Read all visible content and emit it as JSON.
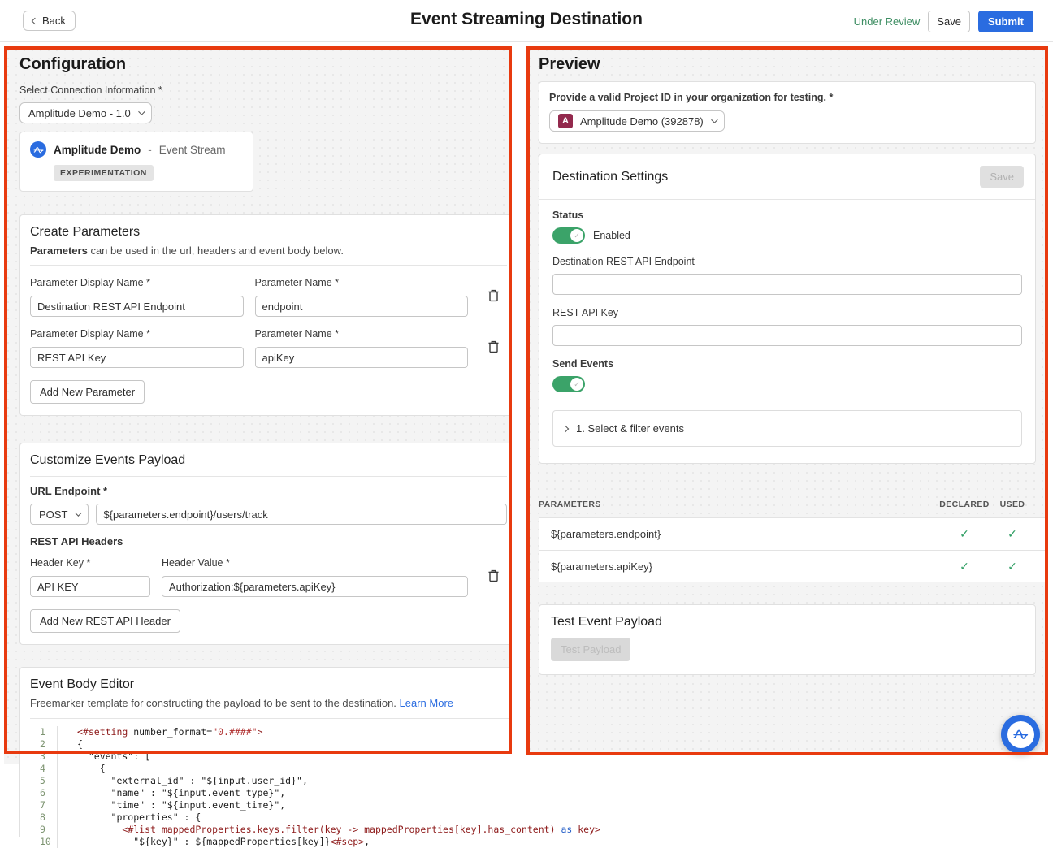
{
  "header": {
    "back_label": "Back",
    "title": "Event Streaming Destination",
    "status_text": "Under Review",
    "save_label": "Save",
    "submit_label": "Submit"
  },
  "config": {
    "title": "Configuration",
    "connection": {
      "label": "Select Connection Information *",
      "selected": "Amplitude Demo - 1.0",
      "card_name": "Amplitude Demo",
      "card_sep": "-",
      "card_type": "Event Stream",
      "badge": "EXPERIMENTATION"
    },
    "create_parameters": {
      "title": "Create Parameters",
      "subtitle_bold": "Parameters",
      "subtitle_rest": " can be used in the url, headers and event body below.",
      "display_name_label": "Parameter Display Name *",
      "name_label": "Parameter Name *",
      "rows": [
        {
          "display_name": "Destination REST API Endpoint",
          "name": "endpoint"
        },
        {
          "display_name": "REST API Key",
          "name": "apiKey"
        }
      ],
      "add_button": "Add New Parameter"
    },
    "payload": {
      "title": "Customize Events Payload",
      "url_label": "URL Endpoint *",
      "method": "POST",
      "url_value": "${parameters.endpoint}/users/track",
      "headers_label": "REST API Headers",
      "header_key_label": "Header Key *",
      "header_value_label": "Header Value *",
      "header_rows": [
        {
          "key": "API KEY",
          "value": "Authorization:${parameters.apiKey}"
        }
      ],
      "add_button": "Add New REST API Header"
    },
    "editor": {
      "title": "Event Body Editor",
      "subtitle": "Freemarker template for constructing the payload to be sent to the destination. ",
      "learn_more": "Learn More",
      "lines": [
        {
          "num": "1",
          "segments": [
            [
              "<#setting ",
              "dir"
            ],
            [
              "number_format=",
              "plain"
            ],
            [
              "\"0.####\"",
              "str"
            ],
            [
              ">",
              "dir"
            ]
          ]
        },
        {
          "num": "2",
          "segments": [
            [
              "{",
              "plain"
            ]
          ]
        },
        {
          "num": "3",
          "segments": [
            [
              "  \"events\": [",
              "plain"
            ]
          ]
        },
        {
          "num": "4",
          "segments": [
            [
              "    {",
              "plain"
            ]
          ]
        },
        {
          "num": "5",
          "segments": [
            [
              "      \"external_id\" : \"${input.user_id}\",",
              "plain"
            ]
          ]
        },
        {
          "num": "6",
          "segments": [
            [
              "      \"name\" : \"${input.event_type}\",",
              "plain"
            ]
          ]
        },
        {
          "num": "7",
          "segments": [
            [
              "      \"time\" : \"${input.event_time}\",",
              "plain"
            ]
          ]
        },
        {
          "num": "8",
          "segments": [
            [
              "      \"properties\" : {",
              "plain"
            ]
          ]
        },
        {
          "num": "9",
          "segments": [
            [
              "        ",
              "plain"
            ],
            [
              "<#list mappedProperties.keys.filter(key -> mappedProperties[key].has_content) ",
              "dir"
            ],
            [
              "as",
              "kw"
            ],
            [
              " key>",
              "dir"
            ]
          ]
        },
        {
          "num": "10",
          "segments": [
            [
              "          \"${key}\" : ${mappedProperties[key]}",
              "plain"
            ],
            [
              "<#sep>",
              "dir"
            ],
            [
              ",",
              "plain"
            ]
          ]
        }
      ]
    }
  },
  "preview": {
    "title": "Preview",
    "project": {
      "label": "Provide a valid Project ID in your organization for testing. *",
      "avatar_letter": "A",
      "selected": "Amplitude Demo (392878)"
    },
    "settings": {
      "title": "Destination Settings",
      "save_label": "Save",
      "status_label": "Status",
      "status_value": "Enabled",
      "endpoint_label": "Destination REST API Endpoint",
      "api_key_label": "REST API Key",
      "send_events_label": "Send Events",
      "filter_section": "1. Select & filter events"
    },
    "parameters_table": {
      "col_parameters": "PARAMETERS",
      "col_declared": "DECLARED",
      "col_used": "USED",
      "rows": [
        {
          "name": "${parameters.endpoint}",
          "declared": "✓",
          "used": "✓"
        },
        {
          "name": "${parameters.apiKey}",
          "declared": "✓",
          "used": "✓"
        }
      ]
    },
    "test": {
      "title": "Test Event Payload",
      "button": "Test Payload"
    }
  },
  "colors": {
    "annotation_red": "#e83a0f",
    "accent_blue": "#2a6ce0",
    "toggle_green": "#3ba369",
    "check_green": "#2f9e63",
    "under_review_green": "#3e8e63",
    "avatar_maroon": "#93294d"
  }
}
